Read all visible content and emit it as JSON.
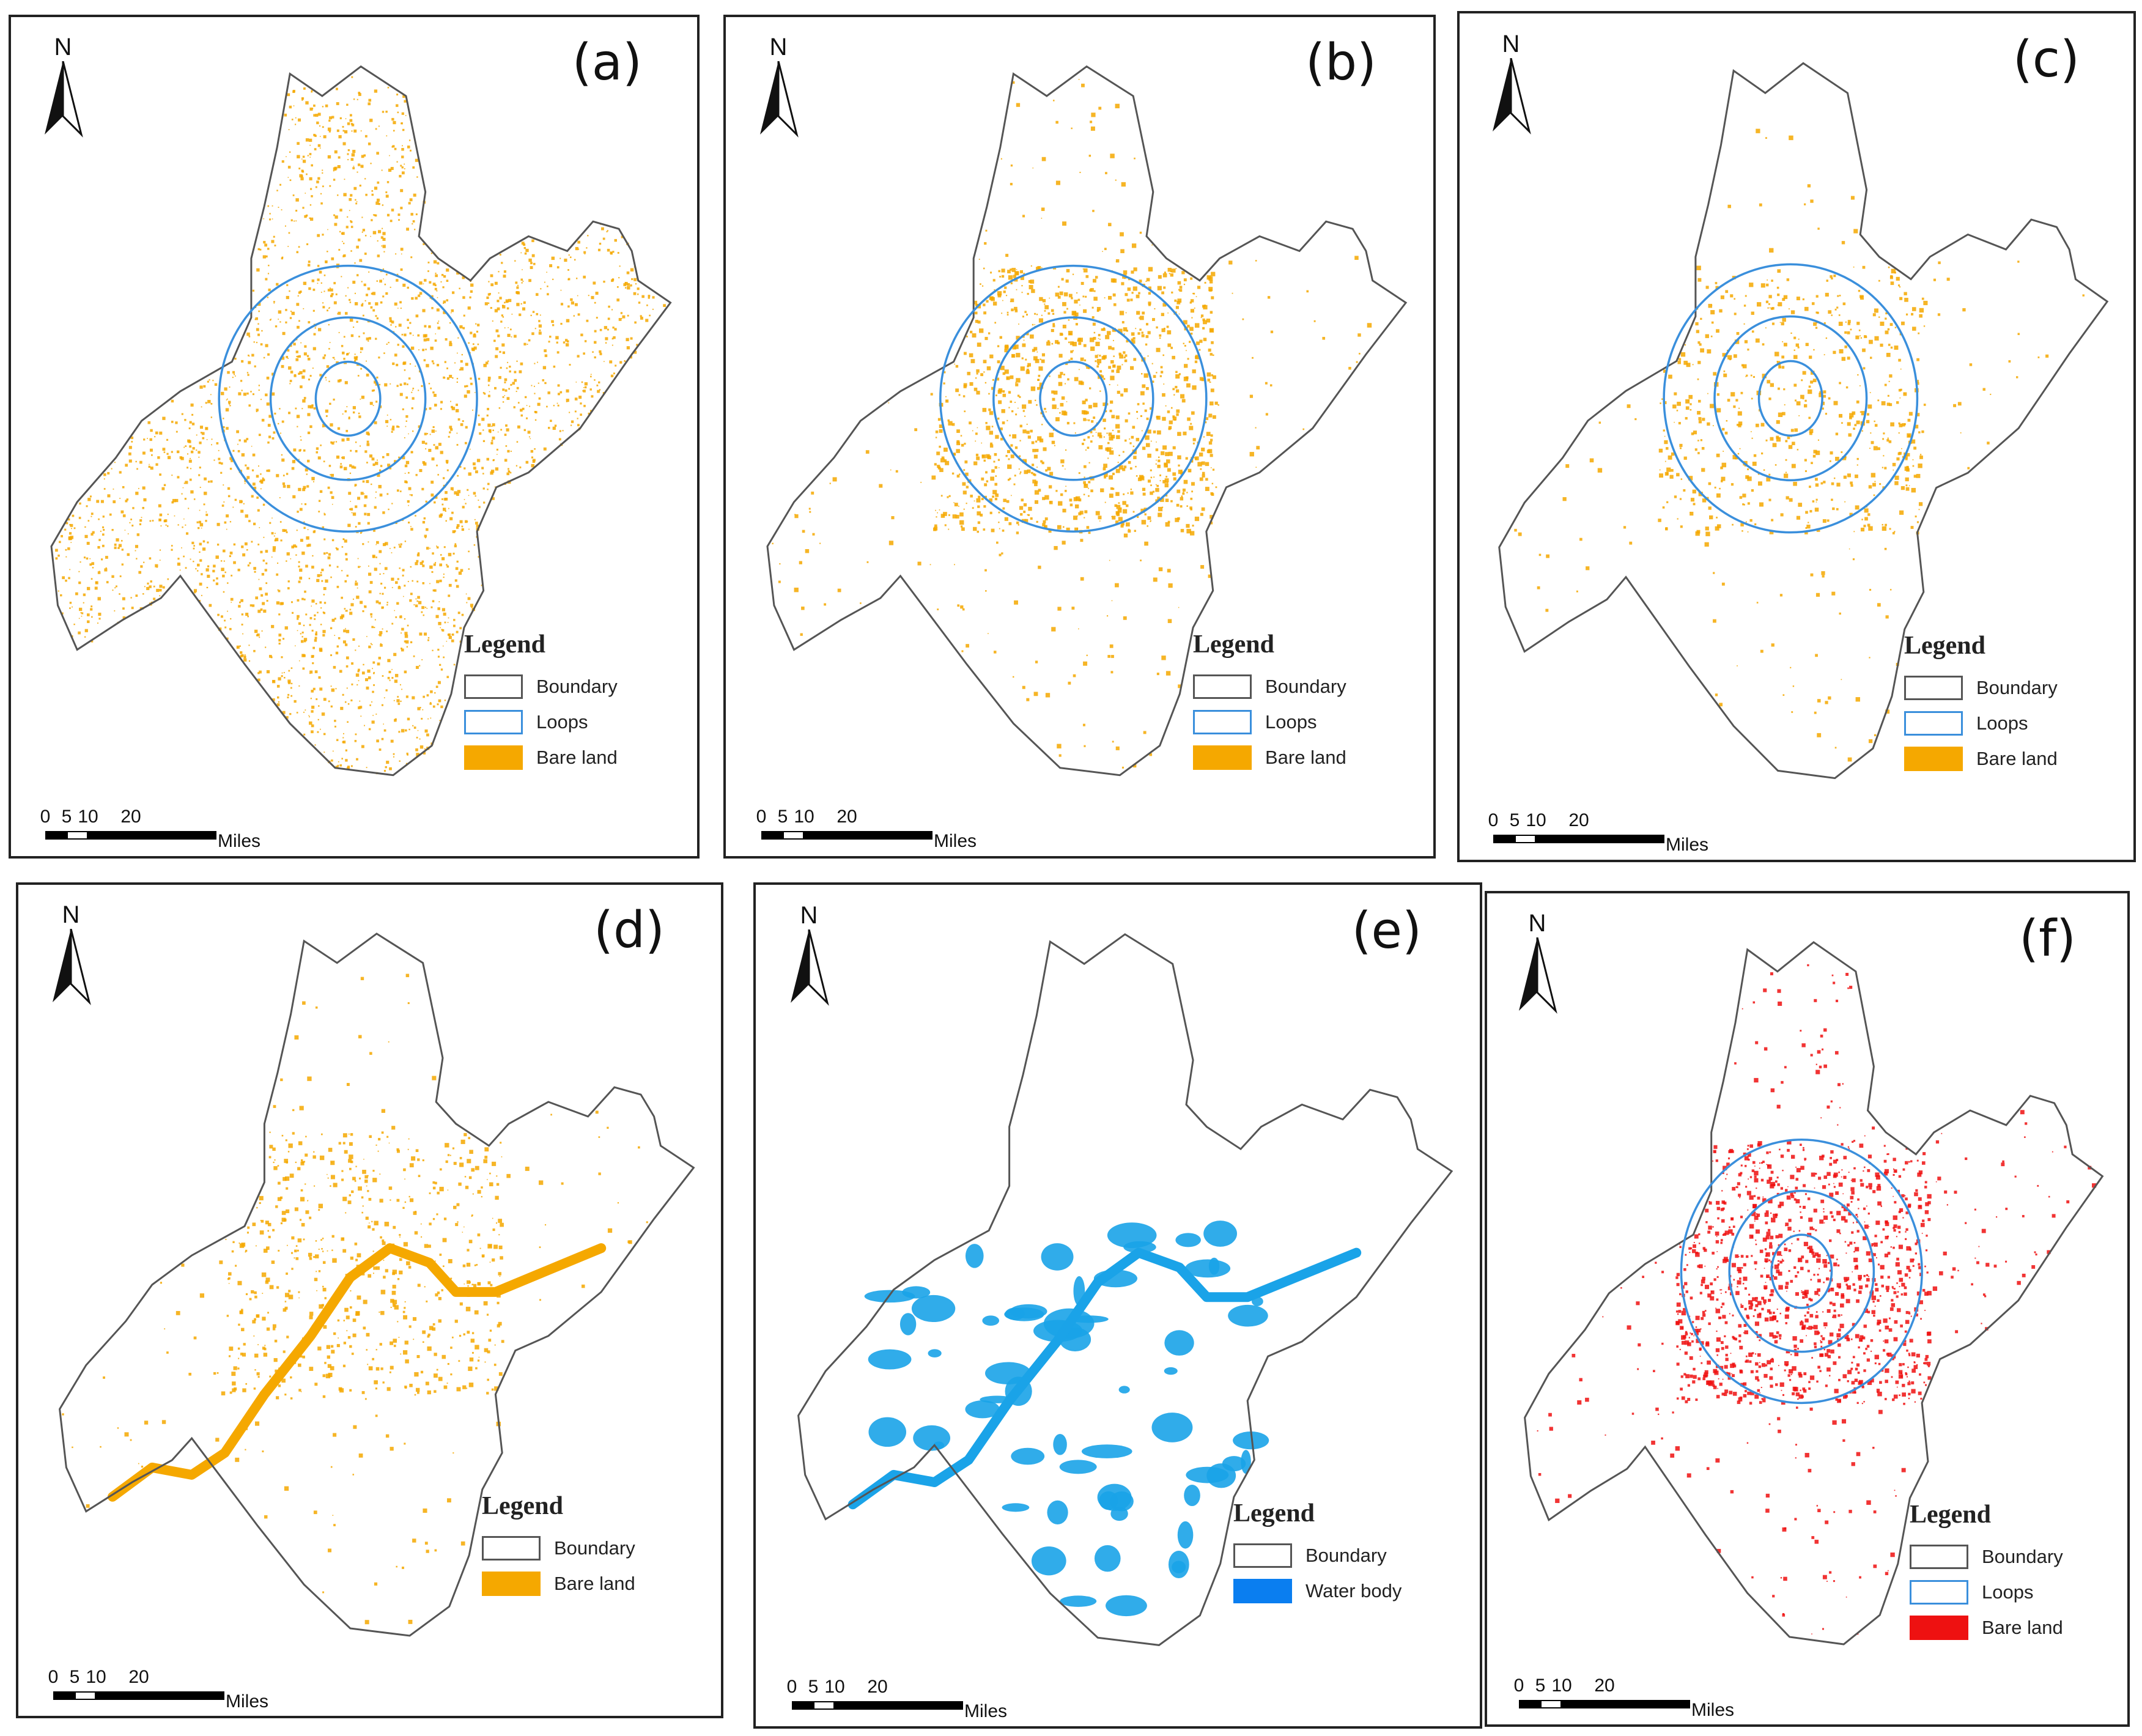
{
  "figure": {
    "panels": [
      {
        "id": "a",
        "label": "(a)",
        "north": "N",
        "legend": {
          "title": "Legend",
          "items": [
            {
              "label": "Boundary",
              "kind": "boundary"
            },
            {
              "label": "Loops",
              "kind": "loops"
            },
            {
              "label": "Bare land",
              "kind": "bare"
            }
          ]
        },
        "scale": {
          "ticks": [
            "0",
            "5",
            "10",
            "20"
          ],
          "units": "Miles"
        },
        "layers": {
          "loops": true,
          "river": false,
          "water": false,
          "bare_color": "#f5a800",
          "bare_density": "high"
        }
      },
      {
        "id": "b",
        "label": "(b)",
        "north": "N",
        "legend": {
          "title": "Legend",
          "items": [
            {
              "label": "Boundary",
              "kind": "boundary"
            },
            {
              "label": "Loops",
              "kind": "loops"
            },
            {
              "label": "Bare land",
              "kind": "bare"
            }
          ]
        },
        "scale": {
          "ticks": [
            "0",
            "5",
            "10",
            "20"
          ],
          "units": "Miles"
        },
        "layers": {
          "loops": true,
          "river": false,
          "water": false,
          "bare_color": "#f5a800",
          "bare_density": "medium"
        }
      },
      {
        "id": "c",
        "label": "(c)",
        "north": "N",
        "legend": {
          "title": "Legend",
          "items": [
            {
              "label": "Boundary",
              "kind": "boundary"
            },
            {
              "label": "Loops",
              "kind": "loops"
            },
            {
              "label": "Bare land",
              "kind": "bare"
            }
          ]
        },
        "scale": {
          "ticks": [
            "0",
            "5",
            "10",
            "20"
          ],
          "units": "Miles"
        },
        "layers": {
          "loops": true,
          "river": false,
          "water": false,
          "bare_color": "#f5a800",
          "bare_density": "low"
        }
      },
      {
        "id": "d",
        "label": "(d)",
        "north": "N",
        "legend": {
          "title": "Legend",
          "items": [
            {
              "label": "Boundary",
              "kind": "boundary"
            },
            {
              "label": "Bare land",
              "kind": "bare"
            }
          ]
        },
        "scale": {
          "ticks": [
            "0",
            "5",
            "10",
            "20"
          ],
          "units": "Miles"
        },
        "layers": {
          "loops": false,
          "river": true,
          "water": false,
          "bare_color": "#f5a800",
          "bare_density": "low"
        }
      },
      {
        "id": "e",
        "label": "(e)",
        "north": "N",
        "legend": {
          "title": "Legend",
          "items": [
            {
              "label": "Boundary",
              "kind": "boundary"
            },
            {
              "label": "Water body",
              "kind": "water"
            }
          ]
        },
        "scale": {
          "ticks": [
            "0",
            "5",
            "10",
            "20"
          ],
          "units": "Miles"
        },
        "layers": {
          "loops": false,
          "river": true,
          "water": true,
          "bare_color": "#1aa3e8",
          "bare_density": "none"
        }
      },
      {
        "id": "f",
        "label": "(f)",
        "north": "N",
        "legend": {
          "title": "Legend",
          "items": [
            {
              "label": "Boundary",
              "kind": "boundary"
            },
            {
              "label": "Loops",
              "kind": "loops"
            },
            {
              "label": "Bare land",
              "kind": "red"
            }
          ]
        },
        "scale": {
          "ticks": [
            "0",
            "5",
            "10",
            "20"
          ],
          "units": "Miles"
        },
        "layers": {
          "loops": true,
          "river": false,
          "water": false,
          "bare_color": "#ee1111",
          "bare_density": "medium"
        }
      }
    ],
    "colors": {
      "boundary": "#555555",
      "loops": "#3a8fdc",
      "bare": "#f5a800",
      "water": "#1aa3e8",
      "water_legend": "#0a7ef0",
      "red": "#ee1111"
    }
  }
}
